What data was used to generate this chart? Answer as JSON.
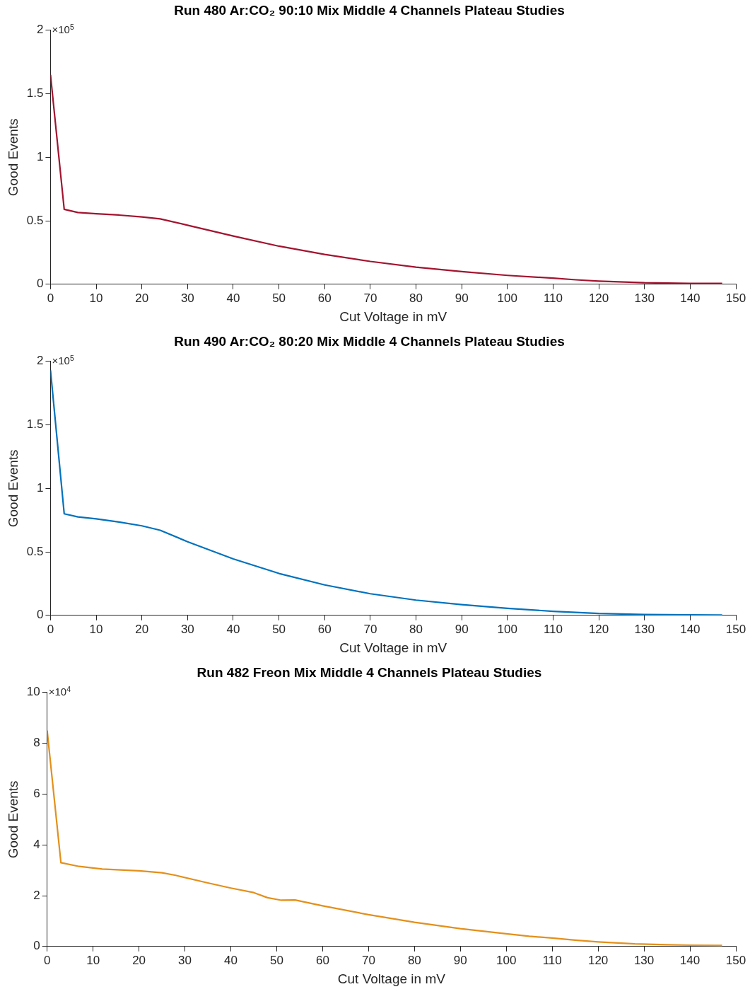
{
  "chart_data": [
    {
      "type": "line",
      "title": "Run 480 Ar:CO₂ 90:10 Mix Middle 4 Channels Plateau Studies",
      "xlabel": "Cut Voltage in mV",
      "ylabel": "Good Events",
      "annotations": [
        "×10$^{5}$"
      ],
      "x": [
        0,
        3,
        6,
        10,
        15,
        20,
        24,
        30,
        40,
        50,
        60,
        70,
        80,
        90,
        100,
        110,
        115,
        120,
        130,
        140,
        147
      ],
      "series": [
        {
          "color": "#a2142f",
          "values": [
            1.65,
            0.59,
            0.565,
            0.555,
            0.545,
            0.53,
            0.515,
            0.465,
            0.38,
            0.3,
            0.235,
            0.18,
            0.135,
            0.1,
            0.07,
            0.048,
            0.035,
            0.025,
            0.012,
            0.007,
            0.006
          ]
        }
      ],
      "xlim": [
        0,
        150
      ],
      "xticks": [
        0,
        10,
        20,
        30,
        40,
        50,
        60,
        70,
        80,
        90,
        100,
        110,
        120,
        130,
        140,
        150
      ],
      "ylim": [
        0,
        2
      ],
      "yticks": [
        0,
        0.5,
        1,
        1.5,
        2
      ],
      "legend": false,
      "grid": false
    },
    {
      "type": "line",
      "title": "Run 490 Ar:CO₂ 80:20 Mix Middle 4 Channels Plateau Studies",
      "xlabel": "Cut Voltage in mV",
      "ylabel": "Good Events",
      "annotations": [
        "×10$^{5}$"
      ],
      "x": [
        0,
        3,
        6,
        10,
        15,
        20,
        24,
        30,
        40,
        50,
        60,
        70,
        80,
        90,
        100,
        110,
        120,
        130,
        140,
        147
      ],
      "series": [
        {
          "color": "#0072bd",
          "values": [
            1.93,
            0.8,
            0.775,
            0.76,
            0.735,
            0.705,
            0.67,
            0.58,
            0.445,
            0.33,
            0.24,
            0.17,
            0.12,
            0.085,
            0.055,
            0.032,
            0.015,
            0.006,
            0.004,
            0.002
          ]
        }
      ],
      "xlim": [
        0,
        150
      ],
      "xticks": [
        0,
        10,
        20,
        30,
        40,
        50,
        60,
        70,
        80,
        90,
        100,
        110,
        120,
        130,
        140,
        150
      ],
      "ylim": [
        0,
        2
      ],
      "yticks": [
        0,
        0.5,
        1,
        1.5,
        2
      ],
      "legend": false,
      "grid": false
    },
    {
      "type": "line",
      "title": "Run 482 Freon Mix Middle 4 Channels Plateau Studies",
      "xlabel": "Cut Voltage in mV",
      "ylabel": "Good Events",
      "annotations": [
        "×10$^{4}$"
      ],
      "x": [
        0,
        3,
        7,
        12,
        20,
        25,
        28,
        35,
        40,
        45,
        48,
        51,
        54,
        60,
        70,
        80,
        90,
        100,
        105,
        110,
        115,
        120,
        128,
        135,
        140,
        147
      ],
      "series": [
        {
          "color": "#e3901b",
          "values": [
            8.5,
            3.3,
            3.15,
            3.05,
            2.98,
            2.9,
            2.8,
            2.5,
            2.3,
            2.12,
            1.92,
            1.82,
            1.83,
            1.6,
            1.25,
            0.95,
            0.7,
            0.5,
            0.4,
            0.33,
            0.25,
            0.18,
            0.1,
            0.07,
            0.05,
            0.04
          ]
        }
      ],
      "xlim": [
        0,
        150
      ],
      "xticks": [
        0,
        10,
        20,
        30,
        40,
        50,
        60,
        70,
        80,
        90,
        100,
        110,
        120,
        130,
        140,
        150
      ],
      "ylim": [
        0,
        10
      ],
      "yticks": [
        0,
        2,
        4,
        6,
        8,
        10
      ],
      "legend": false,
      "grid": false
    }
  ]
}
